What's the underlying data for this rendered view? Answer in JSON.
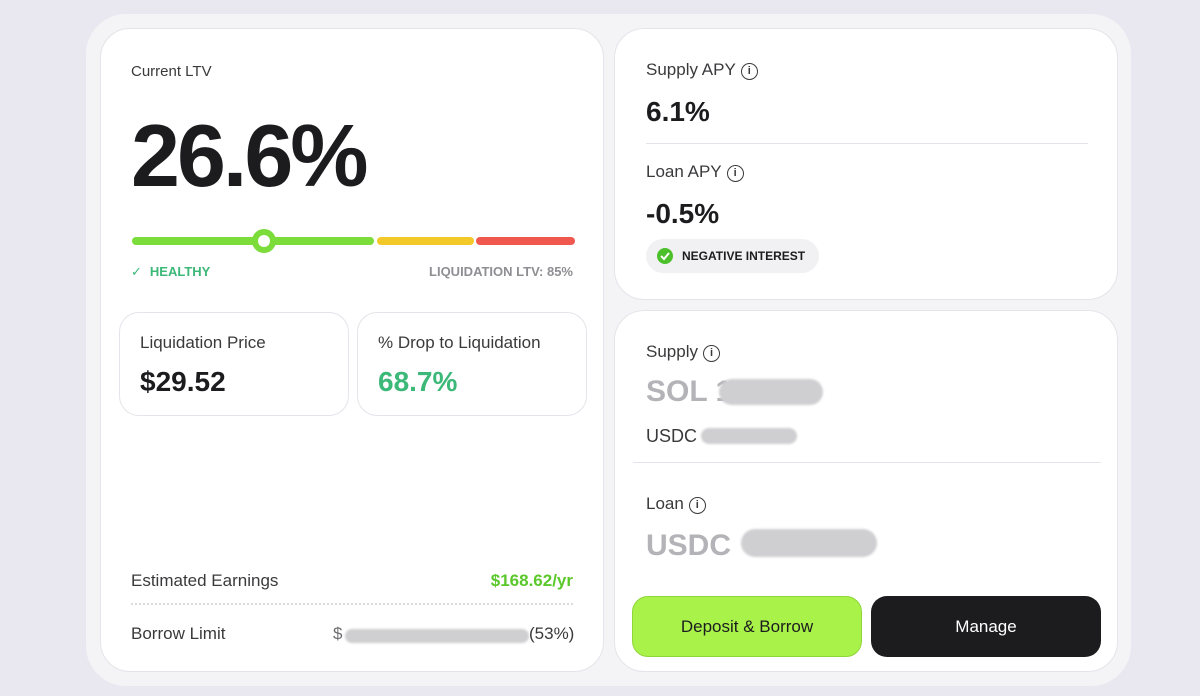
{
  "ltv_card": {
    "label": "Current LTV",
    "value": "26.6%",
    "status": "HEALTHY",
    "liquidation_ltv": "LIQUIDATION LTV: 85%",
    "liquidation_price": {
      "label": "Liquidation Price",
      "value": "$29.52"
    },
    "drop_to_liquidation": {
      "label": "% Drop to Liquidation",
      "value": "68.7%"
    },
    "estimated_earnings": {
      "label": "Estimated Earnings",
      "value": "$168.62/yr"
    },
    "borrow_limit": {
      "label": "Borrow Limit",
      "value_prefix": "$",
      "value_suffix": "(53%)"
    }
  },
  "apy_card": {
    "supply_apy": {
      "label": "Supply APY",
      "value": "6.1%"
    },
    "loan_apy": {
      "label": "Loan APY",
      "value": "-0.5%",
      "badge": "NEGATIVE INTEREST"
    }
  },
  "position_card": {
    "supply": {
      "label": "Supply",
      "primary": "SOL 1",
      "secondary": "USDC"
    },
    "loan": {
      "label": "Loan",
      "primary": "USDC"
    }
  },
  "buttons": {
    "deposit_borrow": "Deposit & Borrow",
    "manage": "Manage"
  }
}
